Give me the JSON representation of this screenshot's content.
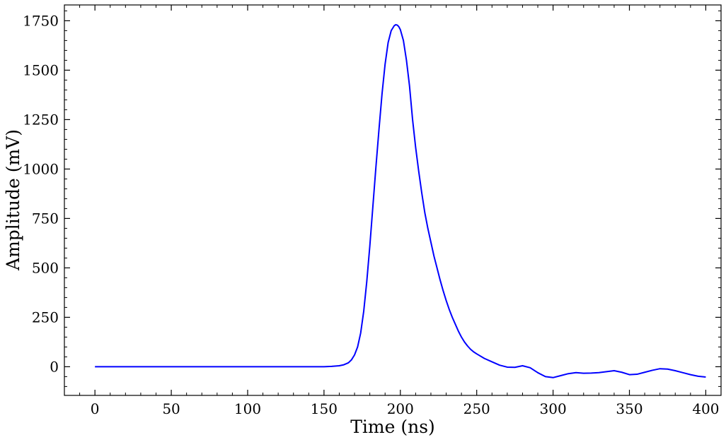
{
  "chart_data": {
    "type": "line",
    "xlabel": "Time (ns)",
    "ylabel": "Amplitude (mV)",
    "xlim": [
      -20,
      410
    ],
    "ylim": [
      -145,
      1830
    ],
    "x_ticks": [
      0,
      50,
      100,
      150,
      200,
      250,
      300,
      350,
      400
    ],
    "y_ticks": [
      0,
      250,
      500,
      750,
      1000,
      1250,
      1500,
      1750
    ],
    "x_minor_step": 10,
    "y_minor_step": 50,
    "grid": false,
    "line_color": "#0000ff",
    "series": [
      {
        "x": [
          0,
          20,
          40,
          60,
          80,
          100,
          120,
          140,
          150,
          155,
          160,
          163,
          166,
          168,
          170,
          172,
          174,
          176,
          178,
          180,
          182,
          184,
          186,
          188,
          190,
          192,
          194,
          196,
          197,
          198,
          199,
          200,
          202,
          204,
          206,
          208,
          210,
          212,
          214,
          216,
          218,
          220,
          222,
          224,
          226,
          228,
          230,
          232,
          234,
          236,
          238,
          240,
          242,
          244,
          246,
          248,
          250,
          255,
          260,
          265,
          270,
          275,
          280,
          285,
          290,
          295,
          300,
          305,
          310,
          315,
          320,
          325,
          330,
          335,
          340,
          345,
          350,
          355,
          360,
          365,
          370,
          375,
          380,
          385,
          390,
          395,
          400
        ],
        "y": [
          0,
          0,
          0,
          0,
          0,
          0,
          0,
          0,
          0,
          2,
          5,
          10,
          20,
          35,
          60,
          100,
          170,
          280,
          430,
          610,
          810,
          1010,
          1200,
          1380,
          1530,
          1640,
          1700,
          1725,
          1730,
          1728,
          1720,
          1705,
          1650,
          1550,
          1420,
          1250,
          1110,
          990,
          880,
          780,
          700,
          630,
          560,
          500,
          440,
          385,
          335,
          290,
          250,
          215,
          180,
          150,
          125,
          105,
          88,
          75,
          65,
          42,
          25,
          8,
          -2,
          -3,
          5,
          -5,
          -30,
          -50,
          -55,
          -45,
          -35,
          -30,
          -33,
          -32,
          -30,
          -25,
          -20,
          -28,
          -40,
          -38,
          -28,
          -18,
          -10,
          -12,
          -20,
          -30,
          -40,
          -48,
          -52
        ]
      }
    ]
  }
}
